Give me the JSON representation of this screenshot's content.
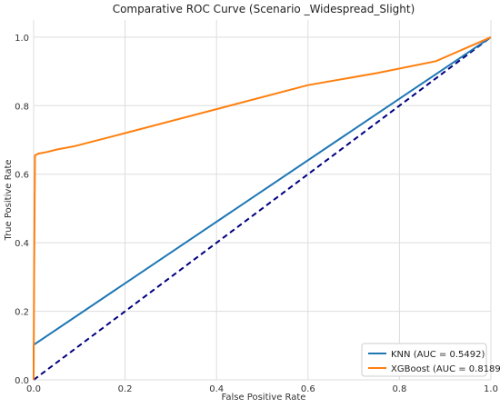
{
  "chart_data": {
    "type": "line",
    "title": "Comparative ROC Curve (Scenario _Widespread_Slight)",
    "xlabel": "False Positive Rate",
    "ylabel": "True Positive Rate",
    "xlim": [
      0.0,
      1.0
    ],
    "ylim": [
      0.0,
      1.05
    ],
    "xticks": [
      "0.0",
      "0.2",
      "0.4",
      "0.6",
      "0.8",
      "1.0"
    ],
    "yticks": [
      "0.0",
      "0.2",
      "0.4",
      "0.6",
      "0.8",
      "1.0"
    ],
    "grid": true,
    "legend_position": "bottom-right",
    "series": [
      {
        "name": "KNN (AUC = 0.5492)",
        "color": "#1f77b4",
        "x": [
          0.0,
          0.0,
          1.0
        ],
        "y": [
          0.0,
          0.102,
          1.0
        ]
      },
      {
        "name": "XGBoost (AUC = 0.8189)",
        "color": "#ff7f0e",
        "x": [
          0.0,
          0.001,
          0.003,
          0.01,
          0.03,
          0.05,
          0.09,
          0.2,
          0.4,
          0.6,
          0.75,
          0.88,
          1.0
        ],
        "y": [
          0.0,
          0.3,
          0.655,
          0.66,
          0.665,
          0.672,
          0.682,
          0.72,
          0.79,
          0.86,
          0.895,
          0.93,
          1.0
        ]
      }
    ],
    "reference_line": {
      "x": [
        0.0,
        1.0
      ],
      "y": [
        0.0,
        1.0
      ],
      "color": "#000080",
      "style": "dashed"
    }
  }
}
